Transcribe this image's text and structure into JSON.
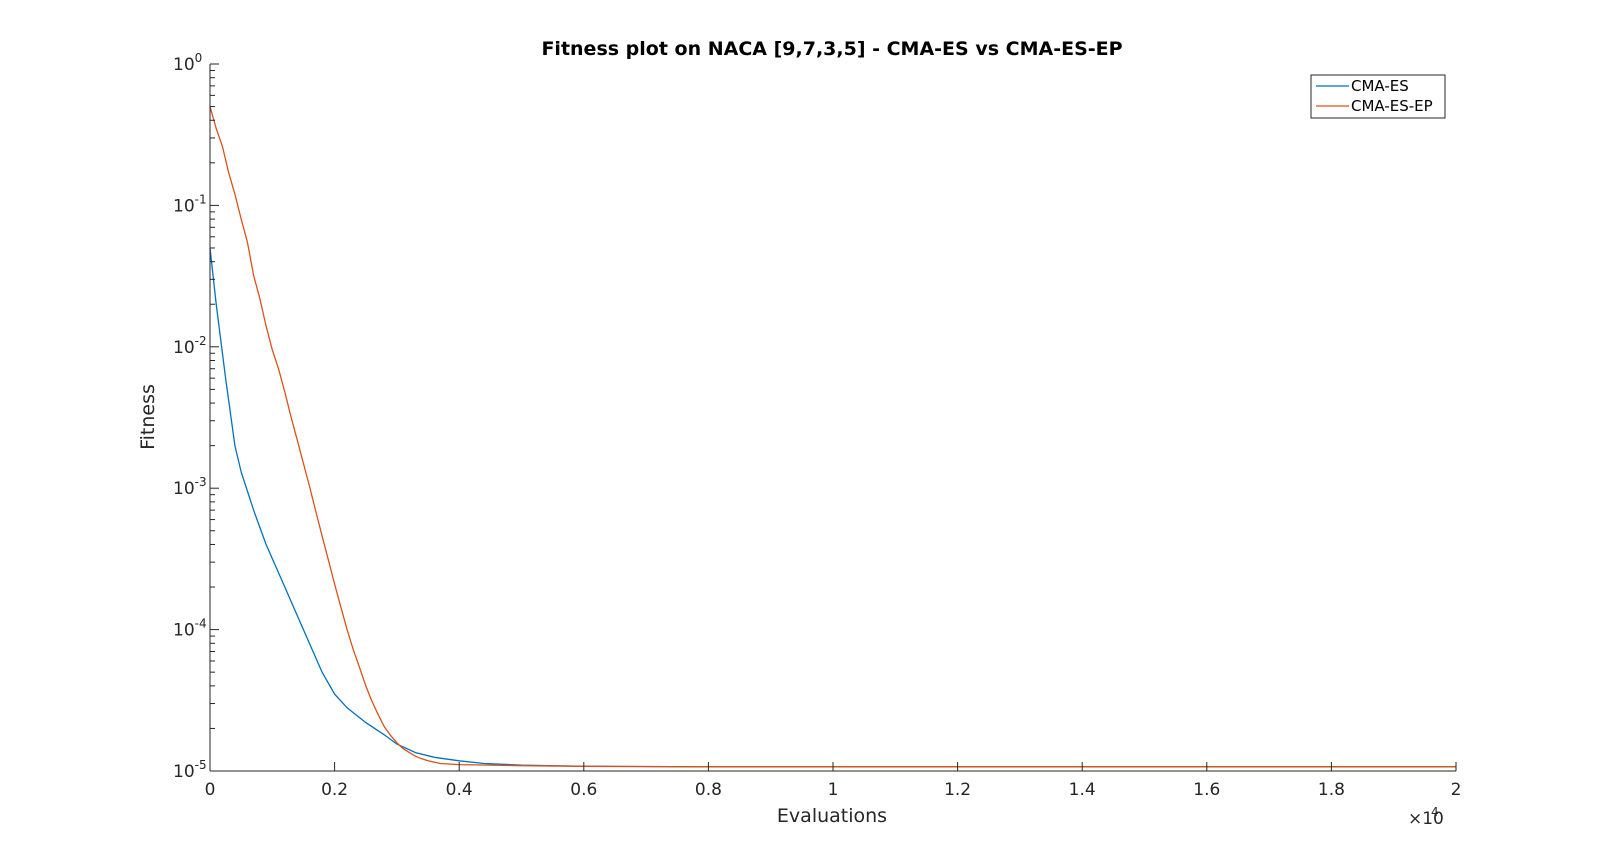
{
  "chart_data": {
    "type": "line",
    "title": "Fitness plot on NACA [9,7,3,5] - CMA-ES vs CMA-ES-EP",
    "xlabel": "Evaluations",
    "ylabel": "Fitness",
    "xlim": [
      0,
      20000
    ],
    "ylim": [
      1e-05,
      1
    ],
    "yscale": "log",
    "x_exponent_label": "×10",
    "x_exponent_power": "4",
    "x_tick_labels": [
      "0",
      "0.2",
      "0.4",
      "0.6",
      "0.8",
      "1",
      "1.2",
      "1.4",
      "1.6",
      "1.8",
      "2"
    ],
    "y_tick_labels": [
      {
        "base": "10",
        "exp": "-5"
      },
      {
        "base": "10",
        "exp": "-4"
      },
      {
        "base": "10",
        "exp": "-3"
      },
      {
        "base": "10",
        "exp": "-2"
      },
      {
        "base": "10",
        "exp": "-1"
      },
      {
        "base": "10",
        "exp": "0"
      }
    ],
    "grid": false,
    "legend_position": "top-right",
    "series": [
      {
        "name": "CMA-ES",
        "color": "#0072BD",
        "x": [
          0,
          100,
          250,
          400,
          500,
          700,
          900,
          1200,
          1500,
          1800,
          2000,
          2200,
          2500,
          2800,
          3000,
          3300,
          3600,
          4000,
          4400,
          5000,
          6000,
          8000,
          10000,
          14000,
          20000
        ],
        "y": [
          0.05,
          0.02,
          0.006,
          0.002,
          0.0013,
          0.0007,
          0.0004,
          0.0002,
          0.0001,
          5e-05,
          3.5e-05,
          2.8e-05,
          2.2e-05,
          1.8e-05,
          1.55e-05,
          1.35e-05,
          1.25e-05,
          1.18e-05,
          1.13e-05,
          1.1e-05,
          1.08e-05,
          1.07e-05,
          1.07e-05,
          1.07e-05,
          1.07e-05
        ]
      },
      {
        "name": "CMA-ES-EP",
        "color": "#D95319",
        "x": [
          0,
          100,
          200,
          300,
          400,
          500,
          600,
          700,
          800,
          900,
          1000,
          1100,
          1200,
          1300,
          1400,
          1500,
          1600,
          1700,
          1800,
          1900,
          2000,
          2100,
          2200,
          2300,
          2400,
          2500,
          2600,
          2700,
          2800,
          2900,
          3000,
          3100,
          3200,
          3300,
          3400,
          3500,
          3700,
          4000,
          4500,
          5000,
          6000,
          8000,
          10000,
          14000,
          20000
        ],
        "y": [
          0.5,
          0.35,
          0.26,
          0.17,
          0.12,
          0.08,
          0.055,
          0.032,
          0.022,
          0.014,
          0.0095,
          0.007,
          0.0048,
          0.0032,
          0.0022,
          0.0015,
          0.00102,
          0.00068,
          0.00046,
          0.00031,
          0.00021,
          0.000145,
          0.0001,
          7.2e-05,
          5.4e-05,
          4e-05,
          3.1e-05,
          2.5e-05,
          2.05e-05,
          1.78e-05,
          1.58e-05,
          1.44e-05,
          1.35e-05,
          1.27e-05,
          1.22e-05,
          1.18e-05,
          1.13e-05,
          1.11e-05,
          1.1e-05,
          1.09e-05,
          1.08e-05,
          1.07e-05,
          1.07e-05,
          1.07e-05,
          1.07e-05
        ]
      }
    ]
  }
}
